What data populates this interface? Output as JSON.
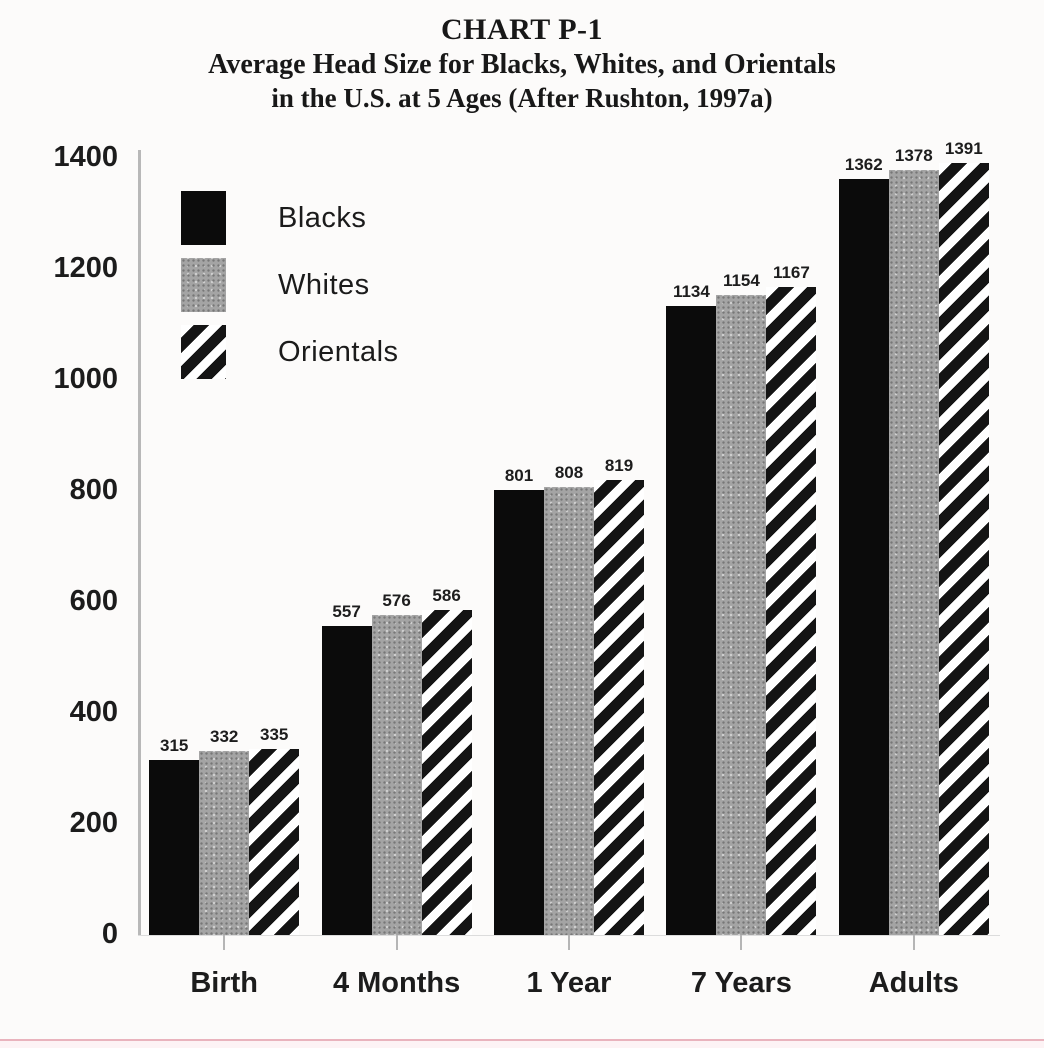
{
  "title": {
    "line1": "CHART P-1",
    "line2": "Average Head Size for Blacks, Whites, and Orientals",
    "line3": "in the U.S. at 5 Ages (After Rushton, 1997a)"
  },
  "chart_data": {
    "type": "bar",
    "title": "CHART P-1",
    "subtitle": "Average Head Size for Blacks, Whites, and Orientals in the U.S. at 5 Ages (After Rushton, 1997a)",
    "categories": [
      "Birth",
      "4 Months",
      "1 Year",
      "7 Years",
      "Adults"
    ],
    "series": [
      {
        "name": "Blacks",
        "pattern": "solid",
        "values": [
          315,
          557,
          801,
          1134,
          1362
        ]
      },
      {
        "name": "Whites",
        "pattern": "stipple",
        "values": [
          332,
          576,
          808,
          1154,
          1378
        ]
      },
      {
        "name": "Orientals",
        "pattern": "diagonal-hatch",
        "values": [
          335,
          586,
          819,
          1167,
          1391
        ]
      }
    ],
    "xlabel": "",
    "ylabel": "",
    "ylim": [
      0,
      1400
    ],
    "yticks": [
      0,
      200,
      400,
      600,
      800,
      1000,
      1200,
      1400
    ],
    "grid": false,
    "value_labels": true,
    "legend_position": "upper-left-inside"
  },
  "colors": {
    "background": "#fcfbfa",
    "bar_black": "#0b0b0b",
    "bar_gray": "#a4a4a4",
    "hatch_ink": "#141414",
    "axis": "#b8b8b8",
    "text": "#1c1c1c",
    "bottom_line": "#e9b3bd"
  }
}
